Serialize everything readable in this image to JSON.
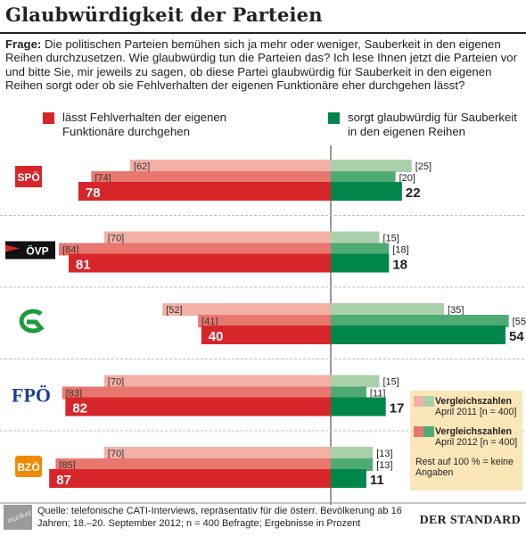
{
  "title": "Glaubwürdigkeit der Parteien",
  "question": {
    "label": "Frage:",
    "text": "Die politischen Parteien bemühen sich ja mehr oder weniger, Sauberkeit in den eigenen Reihen durchzusetzen. Wie glaubwürdig tun die Parteien das? Ich lese Ihnen jetzt die Parteien vor und bitte Sie, mir jeweils zu sagen, ob diese Partei glaubwürdig für Sauberkeit in den eigenen Reihen sorgt oder ob sie Fehlverhalten der eigenen Funktionäre eher durchgehen lässt?"
  },
  "legend": {
    "left": "lässt Fehlverhalten der eigenen Funktionäre durchgehen",
    "right": "sorgt glaubwürdig für Sauberkeit in den eigenen Reihen"
  },
  "comparison_legend": {
    "item1_title": "Vergleichszahlen",
    "item1_sub": "April 2011 [n = 400]",
    "item2_title": "Vergleichszahlen",
    "item2_sub": "April 2012 [n = 400]",
    "note": "Rest auf 100 % = keine Angaben"
  },
  "source": "Quelle: telefonische CATI-Interviews, repräsentativ für die österr. Bevölkerung ab 16 Jahren; 18.–20. September 2012; n = 400 Befragte; Ergebnisse in Prozent",
  "market_logo": "market",
  "brand": "DER STANDARD",
  "colors": {
    "red_current": "#d7262a",
    "red_2012": "#e8776f",
    "red_2011": "#f2b0a6",
    "green_current": "#00864a",
    "green_2012": "#4faa74",
    "green_2011": "#a9d0aa",
    "divider": "#333333"
  },
  "chart_data": {
    "type": "bar",
    "orientation": "horizontal-diverging",
    "categories": [
      "SPÖ",
      "ÖVP",
      "Grüne",
      "FPÖ",
      "BZÖ"
    ],
    "series": [
      {
        "name": "lässt Fehlverhalten der eigenen Funktionäre durchgehen",
        "period": "April 2011",
        "values": [
          62,
          70,
          52,
          70,
          70
        ]
      },
      {
        "name": "lässt Fehlverhalten der eigenen Funktionäre durchgehen",
        "period": "April 2012",
        "values": [
          74,
          84,
          41,
          83,
          85
        ]
      },
      {
        "name": "lässt Fehlverhalten der eigenen Funktionäre durchgehen",
        "period": "September 2012",
        "values": [
          78,
          81,
          40,
          82,
          87
        ]
      },
      {
        "name": "sorgt glaubwürdig für Sauberkeit in den eigenen Reihen",
        "period": "April 2011",
        "values": [
          25,
          15,
          35,
          15,
          13
        ]
      },
      {
        "name": "sorgt glaubwürdig für Sauberkeit in den eigenen Reihen",
        "period": "April 2012",
        "values": [
          20,
          18,
          55,
          11,
          13
        ]
      },
      {
        "name": "sorgt glaubwürdig für Sauberkeit in den eigenen Reihen",
        "period": "September 2012",
        "values": [
          22,
          18,
          54,
          17,
          11
        ]
      }
    ],
    "party_logos": [
      "SPÖ",
      "ÖVP",
      "G",
      "FPÖ",
      "BZÖ"
    ],
    "legend_position": "right"
  }
}
